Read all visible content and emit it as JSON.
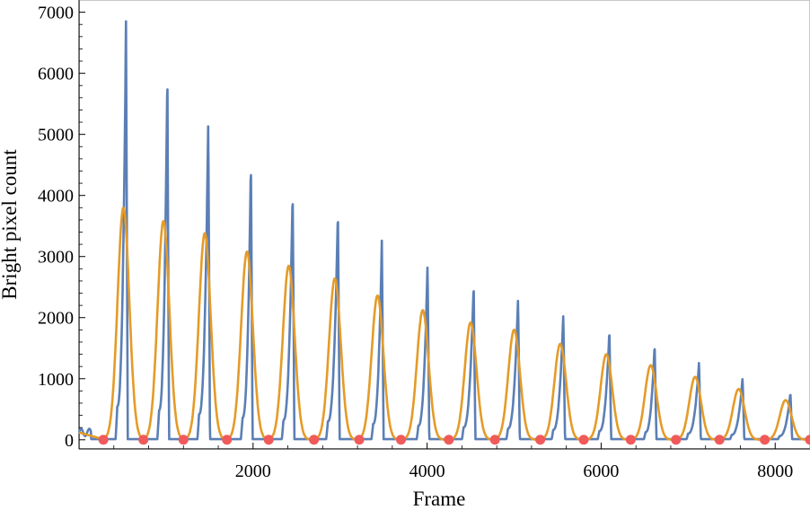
{
  "chart_data": {
    "type": "line",
    "title": "",
    "xlabel": "Frame",
    "ylabel": "Bright pixel count",
    "xlim": [
      0,
      8400
    ],
    "ylim": [
      -150,
      7200
    ],
    "x_ticks": [
      2000,
      4000,
      6000,
      8000
    ],
    "y_ticks": [
      0,
      1000,
      2000,
      3000,
      4000,
      5000,
      6000,
      7000
    ],
    "grid": false,
    "legend": "none",
    "colors": {
      "raw": "#5b7fb5",
      "smooth": "#e49b28",
      "minima": "#f05a5a",
      "axis": "#000000",
      "frame": "#c8c8c8"
    },
    "series": [
      {
        "type": "pulses",
        "starts": [
          440,
          920,
          1380,
          1880,
          2350,
          2860,
          3380,
          3900,
          4420,
          4930,
          5450,
          5980,
          6510,
          7000,
          7500,
          8050
        ],
        "ends": [
          540,
          1015,
          1485,
          1975,
          2455,
          2975,
          3480,
          4005,
          4535,
          5045,
          5565,
          6095,
          6615,
          7125,
          7625,
          8175
        ],
        "peaks": [
          6850,
          6040,
          5240,
          4560,
          4060,
          3750,
          3260,
          2880,
          2560,
          2320,
          2060,
          1800,
          1560,
          1280,
          1010,
          770
        ],
        "baseline": 10
      },
      {
        "type": "smooth",
        "centers": [
          510,
          970,
          1445,
          1930,
          2410,
          2940,
          3430,
          3950,
          4500,
          5000,
          5530,
          6060,
          6570,
          7080,
          7580,
          8120
        ],
        "peaks": [
          3800,
          3580,
          3380,
          3080,
          2850,
          2640,
          2360,
          2120,
          1920,
          1800,
          1570,
          1400,
          1220,
          1030,
          830,
          650
        ]
      },
      {
        "type": "scatter",
        "x": [
          280,
          740,
          1200,
          1700,
          2180,
          2700,
          3220,
          3700,
          4250,
          4780,
          5300,
          5800,
          6340,
          6860,
          7360,
          7880,
          8400
        ],
        "y": [
          0,
          0,
          0,
          0,
          0,
          0,
          0,
          0,
          0,
          0,
          0,
          0,
          0,
          0,
          0,
          0,
          0
        ]
      }
    ]
  }
}
